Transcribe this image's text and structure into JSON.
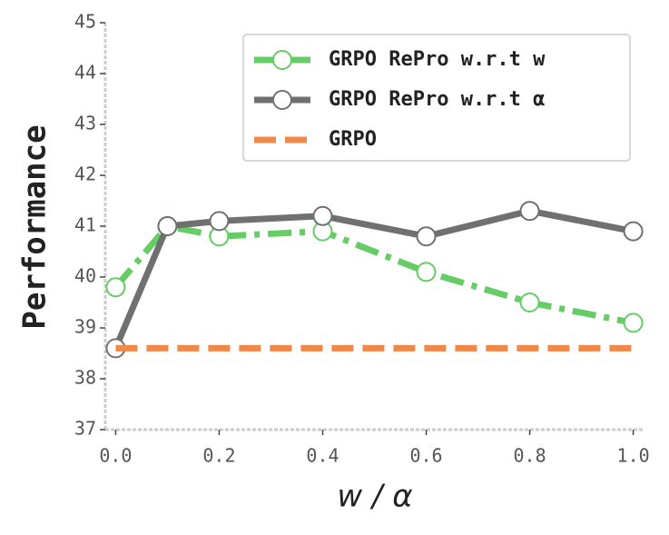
{
  "chart_data": {
    "type": "line",
    "xlabel": "w / α",
    "ylabel": "Performance",
    "xlim": [
      -0.02,
      1.02
    ],
    "ylim": [
      37,
      45
    ],
    "xticks": [
      {
        "value": 0,
        "label": "0.0"
      },
      {
        "value": 0.2,
        "label": "0.2"
      },
      {
        "value": 0.4,
        "label": "0.4"
      },
      {
        "value": 0.6,
        "label": "0.6"
      },
      {
        "value": 0.8,
        "label": "0.8"
      },
      {
        "value": 1.0,
        "label": "1.0"
      }
    ],
    "yticks": [
      37,
      38,
      39,
      40,
      41,
      42,
      43,
      44,
      45
    ],
    "legend": "upper right",
    "series": [
      {
        "name": "GRPO RePro w.r.t w",
        "color": "#66cc66",
        "linestyle": "dashdot",
        "marker": true,
        "x": [
          0,
          0.1,
          0.2,
          0.4,
          0.6,
          0.8,
          1.0
        ],
        "values": [
          39.8,
          41.0,
          40.8,
          40.9,
          40.1,
          39.5,
          39.1
        ]
      },
      {
        "name": "GRPO RePro w.r.t α",
        "color": "#707070",
        "linestyle": "solid",
        "marker": true,
        "x": [
          0,
          0.1,
          0.2,
          0.4,
          0.6,
          0.8,
          1.0
        ],
        "values": [
          38.6,
          41.0,
          41.1,
          41.2,
          40.8,
          41.3,
          40.9
        ]
      },
      {
        "name": "GRPO",
        "color": "#f0884a",
        "linestyle": "dashed",
        "marker": false,
        "x": [
          0,
          1.0
        ],
        "values": [
          38.6,
          38.6
        ]
      }
    ]
  }
}
